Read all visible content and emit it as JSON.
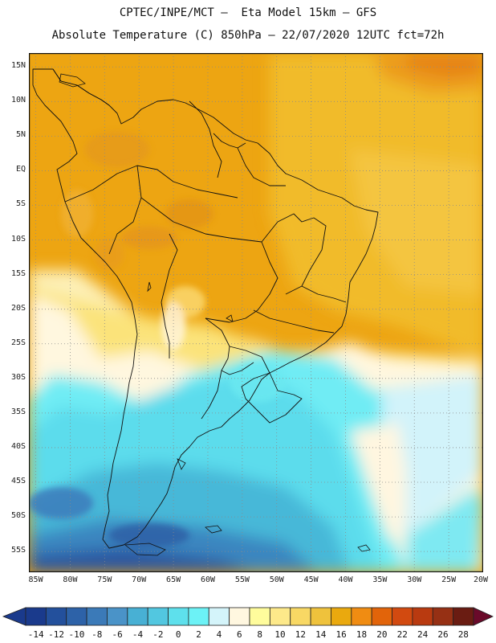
{
  "header": {
    "title_line1": "CPTEC/INPE/MCT –  Eta Model 15km – GFS",
    "title_line2": "Absolute Temperature (C) 850hPa – 22/07/2020 12UTC fct=72h"
  },
  "map": {
    "lat_labels": [
      "15N",
      "10N",
      "5N",
      "EQ",
      "5S",
      "10S",
      "15S",
      "20S",
      "25S",
      "30S",
      "35S",
      "40S",
      "45S",
      "50S",
      "55S"
    ],
    "lon_labels": [
      "85W",
      "80W",
      "75W",
      "70W",
      "65W",
      "60W",
      "55W",
      "50W",
      "45W",
      "40W",
      "35W",
      "30W",
      "25W",
      "20W"
    ],
    "grid": "dotted"
  },
  "colorbar": {
    "labels": [
      "-14",
      "-12",
      "-10",
      "-8",
      "-6",
      "-4",
      "-2",
      "0",
      "2",
      "4",
      "6",
      "8",
      "10",
      "12",
      "14",
      "16",
      "18",
      "20",
      "22",
      "24",
      "26",
      "28"
    ],
    "colors": [
      "#1a3a8c",
      "#23509c",
      "#2d62a8",
      "#3b7ab8",
      "#4a93c8",
      "#48b0d4",
      "#52c7e0",
      "#5ee0ec",
      "#6cf2f6",
      "#d4f4fa",
      "#fff7e0",
      "#fffc9c",
      "#fde98a",
      "#f8d864",
      "#efc23c",
      "#eaa90e",
      "#f08c12",
      "#e2640a",
      "#d24a10",
      "#b93a10",
      "#963014",
      "#6a1c12"
    ]
  }
}
